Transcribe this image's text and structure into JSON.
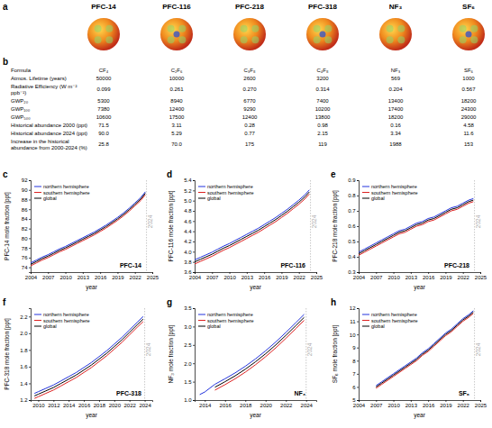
{
  "panel_a": {
    "panel": "a",
    "molecules": [
      "PFC-14",
      "PFC-116",
      "PFC-218",
      "PFC-318",
      "NF₃",
      "SF₆"
    ]
  },
  "table": {
    "panel": "b",
    "rows": [
      {
        "label": "Formula",
        "values": [
          "CF₄",
          "C₂F₆",
          "C₃F₈",
          "C₄F₈",
          "NF₃",
          "SF₆"
        ]
      },
      {
        "label": "Atmos. Lifetime (years)",
        "values": [
          "50000",
          "10000",
          "2600",
          "3200",
          "569",
          "1000"
        ]
      },
      {
        "label": "Radiative Efficiency (W m⁻² ppb⁻¹)",
        "values": [
          "0.099",
          "0.261",
          "0.270",
          "0.314",
          "0.204",
          "0.567"
        ]
      },
      {
        "label": "GWP₂₀",
        "values": [
          "5300",
          "8940",
          "6770",
          "7400",
          "13400",
          "18200"
        ]
      },
      {
        "label": "GWP₁₀₀",
        "values": [
          "7380",
          "12400",
          "9290",
          "10200",
          "17400",
          "24300"
        ]
      },
      {
        "label": "GWP₅₀₀",
        "values": [
          "10600",
          "17500",
          "12400",
          "13800",
          "18200",
          "29000"
        ]
      },
      {
        "label": "Historical abundance 2000 (ppt)",
        "values": [
          "71.5",
          "3.11",
          "0.28",
          "0.98",
          "0.16",
          "4.58"
        ]
      },
      {
        "label": "Historical abundance 2024 (ppt)",
        "values": [
          "90.0",
          "5.29",
          "0.77",
          "2.15",
          "3.34",
          "11.6"
        ]
      },
      {
        "label": "Increase in the historical abundance from 2000-2024 (%)",
        "values": [
          "25.8",
          "70.0",
          "175",
          "119",
          "1988",
          "153"
        ]
      }
    ]
  },
  "chart_data": [
    {
      "type": "line",
      "panel": "c",
      "x_label": "year",
      "y_label": "PFC-14 mole fraction [ppt]",
      "x": [
        2004,
        2005,
        2006,
        2007,
        2008,
        2009,
        2010,
        2011,
        2012,
        2013,
        2014,
        2015,
        2016,
        2017,
        2018,
        2019,
        2020,
        2021,
        2022,
        2023,
        2023.8
      ],
      "xlim": [
        2004,
        2025
      ],
      "xticks": [
        2004,
        2007,
        2010,
        2013,
        2016,
        2019,
        2022,
        2025
      ],
      "ylim": [
        73,
        92
      ],
      "yticks": [
        74,
        76,
        78,
        80,
        82,
        84,
        86,
        88,
        90,
        92
      ],
      "grid": false,
      "legend": "upper left",
      "series": [
        {
          "name": "northern hemisphere",
          "color": "#2233dd",
          "values": [
            74.9,
            75.5,
            76.1,
            76.6,
            77.2,
            77.8,
            78.3,
            78.9,
            79.5,
            80.1,
            80.7,
            81.3,
            82.0,
            82.7,
            83.5,
            84.3,
            85.2,
            86.2,
            87.3,
            88.4,
            89.6
          ]
        },
        {
          "name": "southern hemisphere",
          "color": "#dd2222",
          "values": [
            74.3,
            74.9,
            75.5,
            76.0,
            76.6,
            77.2,
            77.7,
            78.3,
            78.9,
            79.5,
            80.1,
            80.7,
            81.4,
            82.1,
            82.9,
            83.7,
            84.6,
            85.6,
            86.7,
            87.8,
            89.0
          ]
        },
        {
          "name": "global",
          "color": "#000000",
          "values": [
            74.6,
            75.2,
            75.8,
            76.3,
            76.9,
            77.5,
            78.0,
            78.6,
            79.2,
            79.8,
            80.4,
            81.0,
            81.7,
            82.4,
            83.2,
            84.0,
            84.9,
            85.9,
            87.0,
            88.1,
            89.3
          ]
        }
      ],
      "annotations": [
        {
          "text": "PFC-14"
        },
        {
          "text": "2024",
          "x": 2024
        }
      ]
    },
    {
      "type": "line",
      "panel": "d",
      "x_label": "year",
      "y_label": "PFC-116 mole fraction [ppt]",
      "x": [
        2004,
        2005,
        2006,
        2007,
        2008,
        2009,
        2010,
        2011,
        2012,
        2013,
        2014,
        2015,
        2016,
        2017,
        2018,
        2019,
        2020,
        2021,
        2022,
        2023,
        2023.8
      ],
      "xlim": [
        2004,
        2025
      ],
      "xticks": [
        2004,
        2007,
        2010,
        2013,
        2016,
        2019,
        2022,
        2025
      ],
      "ylim": [
        3.6,
        5.4
      ],
      "yticks": [
        3.6,
        3.8,
        {
          "value": 4,
          "label": "4.0"
        },
        4.2,
        4.4,
        4.6,
        4.8,
        {
          "value": 5,
          "label": "5.0"
        },
        5.2,
        5.4
      ],
      "grid": false,
      "legend": "upper left",
      "series": [
        {
          "name": "northern hemisphere",
          "color": "#2233dd",
          "values": [
            3.84,
            3.89,
            3.94,
            3.99,
            4.05,
            4.11,
            4.16,
            4.22,
            4.28,
            4.34,
            4.4,
            4.46,
            4.53,
            4.6,
            4.67,
            4.75,
            4.83,
            4.92,
            5.01,
            5.11,
            5.21
          ]
        },
        {
          "name": "southern hemisphere",
          "color": "#dd2222",
          "values": [
            3.76,
            3.81,
            3.86,
            3.91,
            3.97,
            4.03,
            4.08,
            4.14,
            4.2,
            4.26,
            4.32,
            4.38,
            4.45,
            4.52,
            4.59,
            4.67,
            4.75,
            4.84,
            4.93,
            5.03,
            5.13
          ]
        },
        {
          "name": "global",
          "color": "#000000",
          "values": [
            3.8,
            3.85,
            3.9,
            3.95,
            4.01,
            4.07,
            4.12,
            4.18,
            4.24,
            4.3,
            4.36,
            4.42,
            4.49,
            4.56,
            4.63,
            4.71,
            4.79,
            4.88,
            4.97,
            5.07,
            5.17
          ]
        }
      ],
      "annotations": [
        {
          "text": "PFC-116"
        },
        {
          "text": "2024",
          "x": 2024
        }
      ]
    },
    {
      "type": "line",
      "panel": "e",
      "x_label": "year",
      "y_label": "PFC-218 mole fraction [ppt]",
      "x": [
        2004,
        2005,
        2006,
        2007,
        2008,
        2009,
        2010,
        2011,
        2012,
        2013,
        2014,
        2015,
        2016,
        2017,
        2018,
        2019,
        2020,
        2021,
        2022,
        2023,
        2023.8
      ],
      "xlim": [
        2004,
        2025
      ],
      "xticks": [
        2004,
        2007,
        2010,
        2013,
        2016,
        2019,
        2022,
        2025
      ],
      "ylim": [
        0.3,
        0.9
      ],
      "yticks": [
        0.3,
        0.4,
        0.5,
        0.6,
        0.7,
        0.8,
        0.9
      ],
      "grid": false,
      "legend": "upper left",
      "series": [
        {
          "name": "northern hemisphere",
          "color": "#2233dd",
          "values": [
            0.43,
            0.45,
            0.47,
            0.49,
            0.51,
            0.53,
            0.55,
            0.57,
            0.58,
            0.6,
            0.62,
            0.63,
            0.65,
            0.66,
            0.68,
            0.7,
            0.72,
            0.73,
            0.75,
            0.77,
            0.78
          ]
        },
        {
          "name": "southern hemisphere",
          "color": "#dd2222",
          "values": [
            0.41,
            0.43,
            0.45,
            0.47,
            0.49,
            0.51,
            0.53,
            0.55,
            0.56,
            0.58,
            0.6,
            0.61,
            0.63,
            0.64,
            0.66,
            0.68,
            0.7,
            0.71,
            0.73,
            0.75,
            0.76
          ]
        },
        {
          "name": "global",
          "color": "#000000",
          "values": [
            0.42,
            0.44,
            0.46,
            0.48,
            0.5,
            0.52,
            0.54,
            0.56,
            0.57,
            0.59,
            0.61,
            0.62,
            0.64,
            0.65,
            0.67,
            0.69,
            0.71,
            0.72,
            0.74,
            0.76,
            0.77
          ]
        }
      ],
      "annotations": [
        {
          "text": "PFC-218"
        },
        {
          "text": "2024",
          "x": 2024
        }
      ]
    },
    {
      "type": "line",
      "panel": "f",
      "x_label": "year",
      "y_label": "PFC-318 mole fraction [ppt]",
      "x": [
        2009.5,
        2010,
        2011,
        2012,
        2013,
        2014,
        2015,
        2016,
        2017,
        2018,
        2019,
        2020,
        2021,
        2022,
        2023,
        2023.8
      ],
      "xlim": [
        2009,
        2025
      ],
      "xticks": [
        2010,
        2012,
        2014,
        2016,
        2018,
        2020,
        2022,
        2024
      ],
      "ylim": [
        1.2,
        2.3
      ],
      "yticks": [
        1.2,
        1.4,
        1.6,
        1.8,
        {
          "value": 2,
          "label": "2.0"
        },
        2.2
      ],
      "grid": false,
      "legend": "upper left",
      "series": [
        {
          "name": "northern hemisphere",
          "color": "#2233dd",
          "values": [
            1.28,
            1.3,
            1.34,
            1.38,
            1.43,
            1.48,
            1.53,
            1.59,
            1.65,
            1.72,
            1.79,
            1.87,
            1.95,
            2.04,
            2.13,
            2.2
          ]
        },
        {
          "name": "southern hemisphere",
          "color": "#dd2222",
          "values": [
            1.22,
            1.24,
            1.28,
            1.32,
            1.37,
            1.42,
            1.47,
            1.53,
            1.59,
            1.66,
            1.73,
            1.81,
            1.89,
            1.98,
            2.07,
            2.14
          ]
        },
        {
          "name": "global",
          "color": "#000000",
          "values": [
            1.25,
            1.27,
            1.31,
            1.35,
            1.4,
            1.45,
            1.5,
            1.56,
            1.62,
            1.69,
            1.76,
            1.84,
            1.92,
            2.01,
            2.1,
            2.17
          ]
        }
      ],
      "annotations": [
        {
          "text": "PFC-318"
        },
        {
          "text": "2024",
          "x": 2024
        }
      ]
    },
    {
      "type": "line",
      "panel": "g",
      "x_label": "year",
      "y_label": "NF₃ mole fraction [ppt]",
      "x": [
        2013.5,
        2014,
        2015,
        2016,
        2017,
        2018,
        2019,
        2020,
        2021,
        2022,
        2023,
        2023.8
      ],
      "xlim": [
        2013,
        2025
      ],
      "xticks": [
        2014,
        2016,
        2018,
        2020,
        2022,
        2024
      ],
      "ylim": [
        1,
        3.5
      ],
      "yticks": [
        {
          "value": 1,
          "label": "1.0"
        },
        1.5,
        {
          "value": 2,
          "label": "2.0"
        },
        2.5,
        {
          "value": 3,
          "label": "3.0"
        },
        3.5
      ],
      "grid": false,
      "legend": "upper left",
      "series": [
        {
          "name": "northern hemisphere",
          "color": "#2233dd",
          "values": [
            1.15,
            1.22,
            1.43,
            1.58,
            1.74,
            1.92,
            2.12,
            2.34,
            2.58,
            2.84,
            3.11,
            3.33
          ]
        },
        {
          "name": "southern hemisphere",
          "color": "#dd2222",
          "values": [
            null,
            null,
            1.27,
            1.42,
            1.58,
            1.76,
            1.96,
            2.18,
            2.42,
            2.68,
            2.95,
            3.17
          ]
        },
        {
          "name": "global",
          "color": "#000000",
          "values": [
            null,
            null,
            1.35,
            1.5,
            1.66,
            1.84,
            2.04,
            2.26,
            2.5,
            2.76,
            3.03,
            3.25
          ]
        }
      ],
      "annotations": [
        {
          "text": "NF₃"
        },
        {
          "text": "2024",
          "x": 2024
        }
      ]
    },
    {
      "type": "line",
      "panel": "h",
      "x_label": "year",
      "y_label": "SF₆ mole fraction [ppt]",
      "x": [
        2007,
        2008,
        2009,
        2010,
        2011,
        2012,
        2013,
        2014,
        2015,
        2016,
        2017,
        2018,
        2019,
        2020,
        2021,
        2022,
        2023,
        2023.8
      ],
      "xlim": [
        2004,
        2025
      ],
      "xticks": [
        2004,
        2007,
        2010,
        2013,
        2016,
        2019,
        2022,
        2025
      ],
      "ylim": [
        5,
        12
      ],
      "yticks": [
        5,
        6,
        7,
        8,
        9,
        10,
        11,
        12
      ],
      "grid": false,
      "legend": "upper left",
      "series": [
        {
          "name": "northern hemisphere",
          "color": "#2233dd",
          "values": [
            6.1,
            6.4,
            6.7,
            7.0,
            7.3,
            7.6,
            7.9,
            8.2,
            8.6,
            8.9,
            9.3,
            9.7,
            10.1,
            10.4,
            10.8,
            11.2,
            11.5,
            11.8
          ]
        },
        {
          "name": "southern hemisphere",
          "color": "#dd2222",
          "values": [
            5.9,
            6.2,
            6.5,
            6.8,
            7.1,
            7.4,
            7.7,
            8.0,
            8.4,
            8.7,
            9.1,
            9.5,
            9.9,
            10.2,
            10.6,
            11.0,
            11.3,
            11.6
          ]
        },
        {
          "name": "global",
          "color": "#000000",
          "values": [
            6.0,
            6.3,
            6.6,
            6.9,
            7.2,
            7.5,
            7.8,
            8.1,
            8.5,
            8.8,
            9.2,
            9.6,
            10.0,
            10.3,
            10.7,
            11.1,
            11.4,
            11.7
          ]
        }
      ],
      "annotations": [
        {
          "text": "SF₆"
        },
        {
          "text": "2024",
          "x": 2024
        }
      ]
    }
  ]
}
